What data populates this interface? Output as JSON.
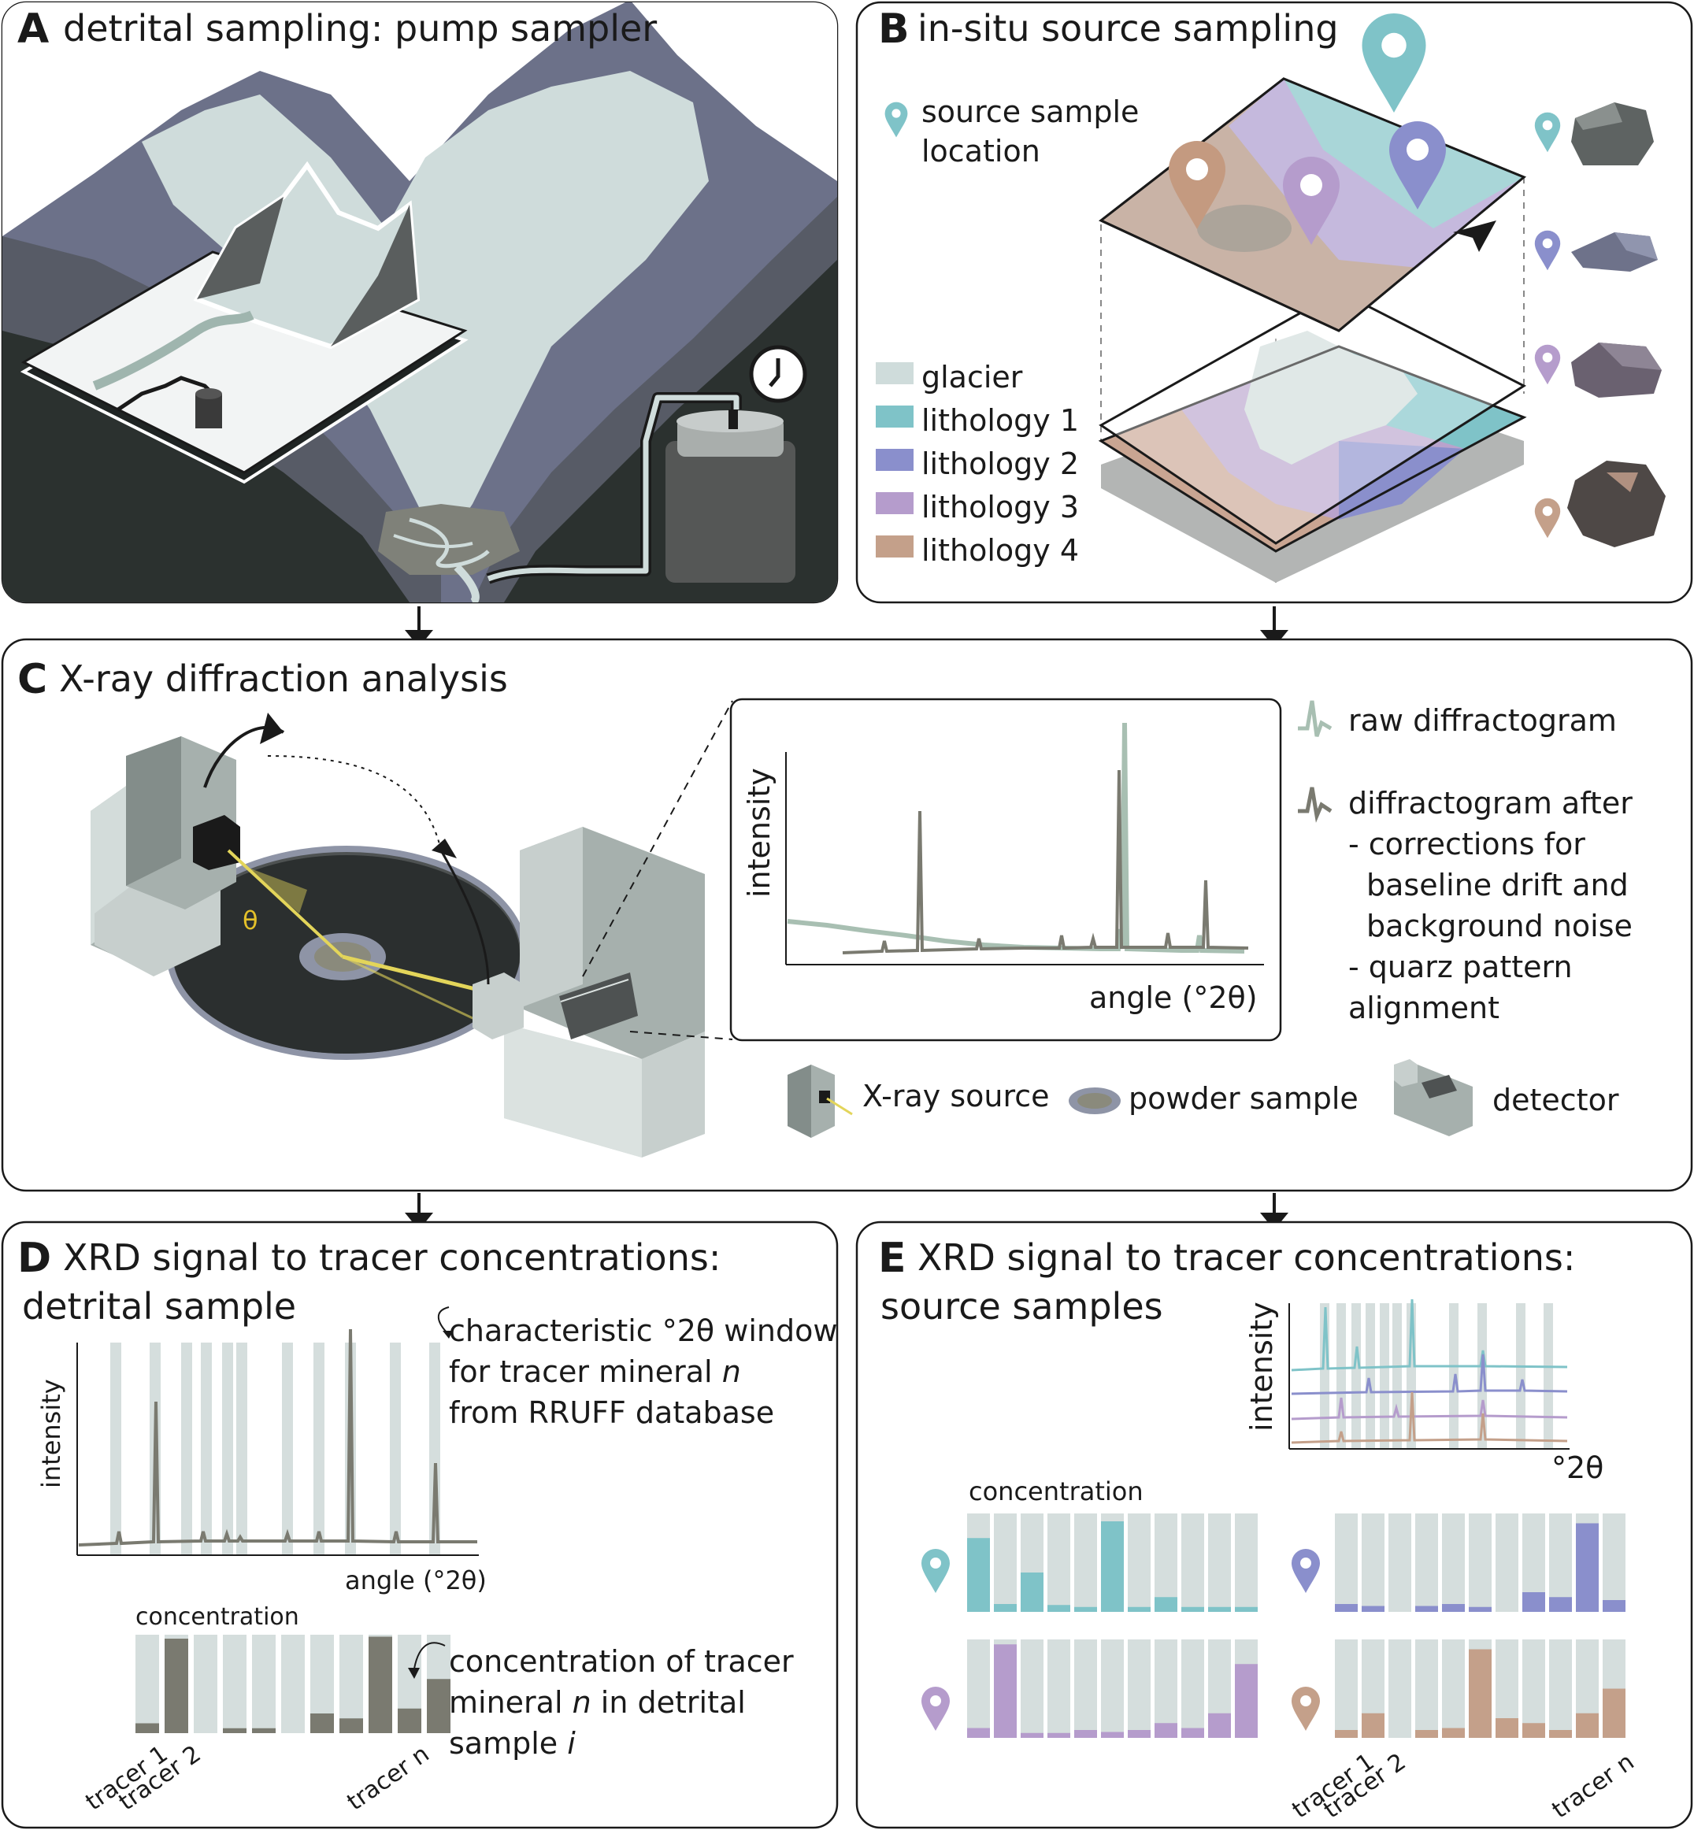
{
  "panels": {
    "a": {
      "letter": "A",
      "title": "detrital sampling: pump sampler"
    },
    "b": {
      "letter": "B",
      "title": "in-situ source sampling",
      "source_label_1": "source sample",
      "source_label_2": "location",
      "legend": [
        {
          "label": "glacier",
          "color": "#cfdcdb"
        },
        {
          "label": "lithology 1",
          "color": "#7fc3c8"
        },
        {
          "label": "lithology 2",
          "color": "#8a8fcc"
        },
        {
          "label": "lithology 3",
          "color": "#b59ccc"
        },
        {
          "label": "lithology 4",
          "color": "#c4a08a"
        }
      ]
    },
    "c": {
      "letter": "C",
      "title": "X-ray diffraction analysis",
      "theta": "θ",
      "ylabel": "intensity",
      "xlabel": "angle (°2θ)",
      "legend_raw": "raw diffractogram",
      "legend_after": [
        "diffractogram after",
        "- corrections for",
        "baseline drift and",
        "background noise",
        "- quarz pattern",
        "alignment"
      ],
      "items": {
        "source": "X-ray source",
        "powder": "powder sample",
        "detector": "detector"
      }
    },
    "d": {
      "letter": "D",
      "title_1": "XRD signal to tracer concentrations:",
      "title_2": "detrital sample",
      "ylabel": "intensity",
      "xlabel": "angle (°2θ)",
      "window_note": [
        "characteristic °2θ window",
        "for tracer mineral",
        "from RRUFF database"
      ],
      "window_note_n": "n",
      "conc_label": "concentration",
      "conc_note": [
        "concentration of tracer",
        "mineral",
        "in detrital",
        "sample"
      ],
      "conc_note_n": "n",
      "conc_note_i": "i",
      "tracer_labels": [
        "tracer 1",
        "tracer 2",
        "tracer n"
      ]
    },
    "e": {
      "letter": "E",
      "title_1": "XRD signal to tracer concentrations:",
      "title_2": "source samples",
      "ylabel": "intensity",
      "xlabel": "°2θ",
      "conc_label": "concentration",
      "tracer_labels": [
        "tracer 1",
        "tracer 2",
        "tracer n"
      ]
    }
  },
  "colors": {
    "lith1": "#7fc3c8",
    "lith2": "#8a8fcc",
    "lith3": "#b59ccc",
    "lith4": "#c4a08a",
    "glacier": "#cfdcdb",
    "bar_bg": "#d5dedd",
    "detrital": "#7a7a70"
  },
  "chart_data": [
    {
      "type": "bar",
      "panel": "D",
      "categories": [
        "tracer 1",
        "tracer 2",
        "",
        "",
        "",
        "",
        "",
        "",
        "",
        "",
        "tracer n"
      ],
      "series": [
        {
          "values": [
            0.1,
            0.96,
            0.0,
            0.05,
            0.05,
            0.0,
            0.2,
            0.15,
            0.98,
            0.25,
            0.55
          ]
        }
      ],
      "ylabel": "concentration",
      "ylim": [
        0,
        1
      ]
    },
    {
      "type": "bar",
      "panel": "E",
      "categories": [
        "tracer 1",
        "tracer 2",
        "",
        "",
        "",
        "",
        "",
        "",
        "",
        "",
        "tracer n"
      ],
      "series": [
        {
          "values": [
            0.75,
            0.08,
            0.4,
            0.07,
            0.05,
            0.92,
            0.05,
            0.15,
            0.05,
            0.05,
            0.05
          ]
        },
        {
          "values": [
            0.08,
            0.06,
            0.0,
            0.06,
            0.08,
            0.05,
            0.0,
            0.2,
            0.15,
            0.9,
            0.12
          ]
        },
        {
          "values": [
            0.1,
            0.95,
            0.05,
            0.05,
            0.08,
            0.06,
            0.08,
            0.15,
            0.1,
            0.25,
            0.75
          ]
        },
        {
          "values": [
            0.08,
            0.25,
            0.0,
            0.08,
            0.1,
            0.9,
            0.2,
            0.15,
            0.08,
            0.25,
            0.5
          ]
        }
      ],
      "ylabel": "concentration",
      "ylim": [
        0,
        1
      ]
    }
  ]
}
